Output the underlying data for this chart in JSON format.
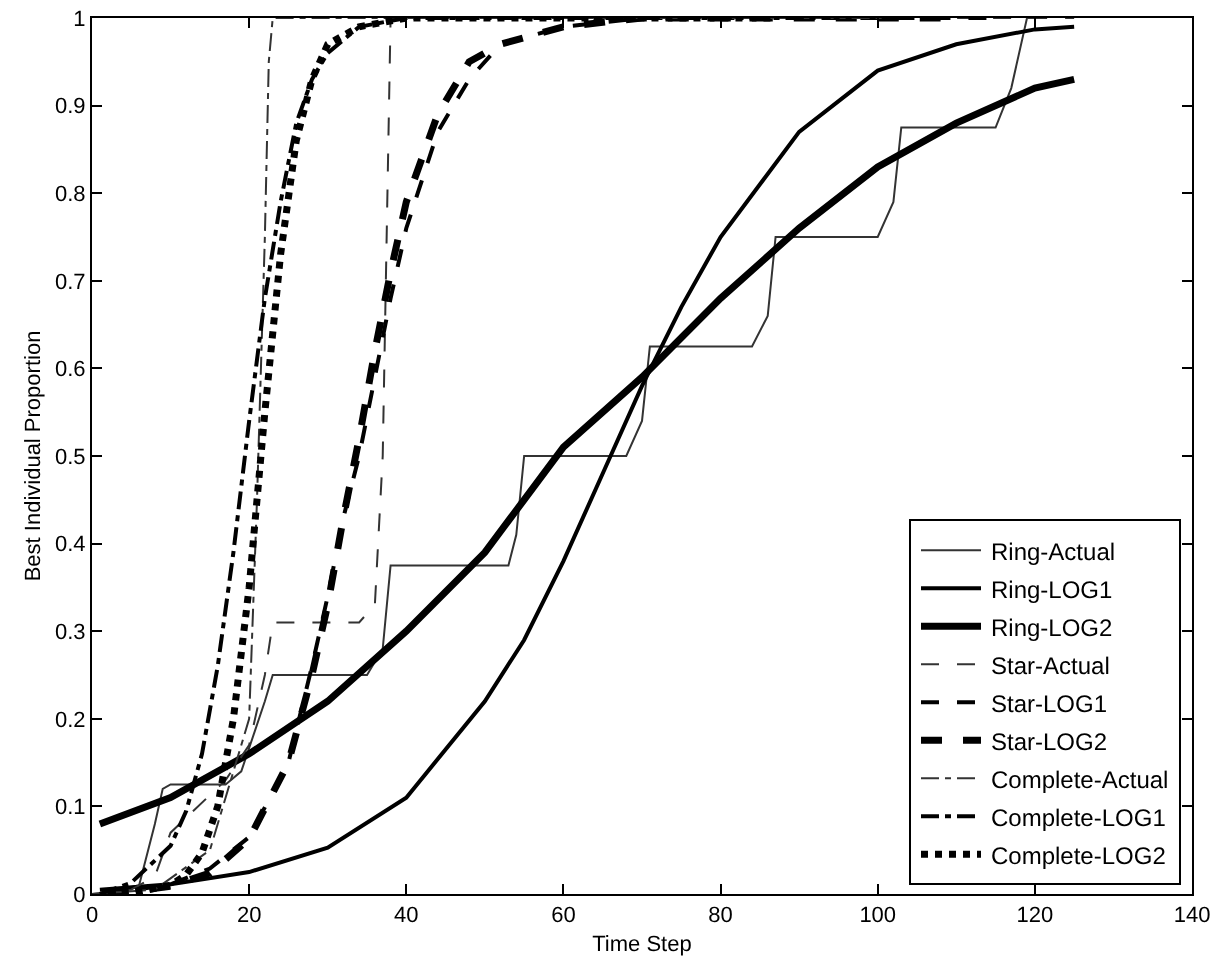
{
  "chart_data": {
    "type": "line",
    "xlabel": "Time Step",
    "ylabel": "Best Individual Proportion",
    "xlim": [
      0,
      140
    ],
    "xticks": [
      0,
      20,
      40,
      60,
      80,
      100,
      120,
      140
    ],
    "ylim": [
      0,
      1
    ],
    "yticks": [
      0,
      0.1,
      0.2,
      0.3,
      0.4,
      0.5,
      0.6,
      0.7,
      0.8,
      0.9,
      1
    ],
    "grid": false,
    "legend": "bottom right",
    "marker": "none",
    "series": [
      {
        "name": "Ring-Actual",
        "color": "#333333",
        "line_style": "solid",
        "x": [
          1,
          6,
          8,
          9,
          10,
          17,
          19,
          22,
          23,
          35,
          37,
          38,
          53,
          54,
          55,
          68,
          70,
          71,
          84,
          86,
          87,
          100,
          102,
          103,
          115,
          117,
          119,
          121
        ],
        "values": [
          0,
          0.01,
          0.08,
          0.12,
          0.125,
          0.125,
          0.14,
          0.22,
          0.25,
          0.25,
          0.28,
          0.375,
          0.375,
          0.41,
          0.5,
          0.5,
          0.54,
          0.625,
          0.625,
          0.66,
          0.75,
          0.75,
          0.79,
          0.875,
          0.875,
          0.92,
          1,
          1
        ]
      },
      {
        "name": "Ring-LOG1",
        "color": "#000000",
        "line_style": "solid",
        "x": [
          1,
          10,
          20,
          30,
          40,
          50,
          55,
          60,
          65,
          70,
          75,
          80,
          90,
          100,
          110,
          120,
          125
        ],
        "values": [
          0.005,
          0.011,
          0.025,
          0.053,
          0.11,
          0.22,
          0.29,
          0.38,
          0.48,
          0.58,
          0.67,
          0.75,
          0.87,
          0.94,
          0.97,
          0.987,
          0.99
        ]
      },
      {
        "name": "Ring-LOG2",
        "color": "#000000",
        "line_style": "solid",
        "x": [
          1,
          10,
          20,
          30,
          40,
          50,
          60,
          70,
          80,
          90,
          100,
          110,
          120,
          125
        ],
        "values": [
          0.08,
          0.11,
          0.16,
          0.22,
          0.3,
          0.39,
          0.51,
          0.59,
          0.68,
          0.76,
          0.83,
          0.88,
          0.92,
          0.93
        ]
      },
      {
        "name": "Star-Actual",
        "color": "#333333",
        "line_style": "dashed",
        "x": [
          0,
          5,
          8,
          10,
          17,
          20,
          22,
          23,
          34,
          36,
          37,
          38,
          40,
          125
        ],
        "values": [
          0,
          0.005,
          0.02,
          0.07,
          0.13,
          0.17,
          0.25,
          0.31,
          0.31,
          0.33,
          0.5,
          1,
          1,
          1
        ]
      },
      {
        "name": "Star-LOG1",
        "color": "#000000",
        "line_style": "dashed",
        "x": [
          1,
          5,
          10,
          15,
          20,
          25,
          28,
          30,
          32,
          34,
          36,
          38,
          40,
          44,
          48,
          52,
          60,
          70,
          115
        ],
        "values": [
          0,
          0.004,
          0.011,
          0.029,
          0.065,
          0.15,
          0.26,
          0.34,
          0.43,
          0.5,
          0.59,
          0.68,
          0.76,
          0.87,
          0.93,
          0.97,
          0.99,
          1,
          1
        ]
      },
      {
        "name": "Star-LOG2",
        "color": "#000000",
        "line_style": "dashed",
        "x": [
          2,
          5,
          10,
          15,
          20,
          25,
          28,
          30,
          32,
          34,
          36,
          38,
          40,
          44,
          48,
          52,
          60,
          70,
          108
        ],
        "values": [
          0.001,
          0.003,
          0.009,
          0.024,
          0.063,
          0.15,
          0.25,
          0.33,
          0.43,
          0.52,
          0.62,
          0.71,
          0.79,
          0.89,
          0.95,
          0.97,
          0.99,
          1,
          1
        ]
      },
      {
        "name": "Complete-Actual",
        "color": "#333333",
        "line_style": "dashdot",
        "x": [
          0,
          8,
          15,
          20,
          21,
          22,
          22.5,
          23,
          101
        ],
        "values": [
          0,
          0.005,
          0.05,
          0.2,
          0.45,
          0.75,
          0.95,
          1,
          1
        ]
      },
      {
        "name": "Complete-LOG1",
        "color": "#000000",
        "line_style": "dashdot",
        "x": [
          1,
          5,
          10,
          12,
          14,
          16,
          18,
          20,
          22,
          24,
          26,
          28,
          30,
          34,
          40,
          94
        ],
        "values": [
          0,
          0.013,
          0.055,
          0.095,
          0.16,
          0.26,
          0.39,
          0.54,
          0.68,
          0.79,
          0.88,
          0.93,
          0.96,
          0.99,
          1,
          1
        ]
      },
      {
        "name": "Complete-LOG2",
        "color": "#000000",
        "line_style": "dotted",
        "x": [
          2,
          5,
          10,
          12,
          14,
          16,
          18,
          20,
          22,
          24,
          26,
          28,
          30,
          34,
          40,
          87
        ],
        "values": [
          0,
          0.001,
          0.01,
          0.022,
          0.047,
          0.1,
          0.2,
          0.35,
          0.55,
          0.73,
          0.86,
          0.93,
          0.97,
          0.99,
          1,
          1
        ]
      }
    ]
  }
}
